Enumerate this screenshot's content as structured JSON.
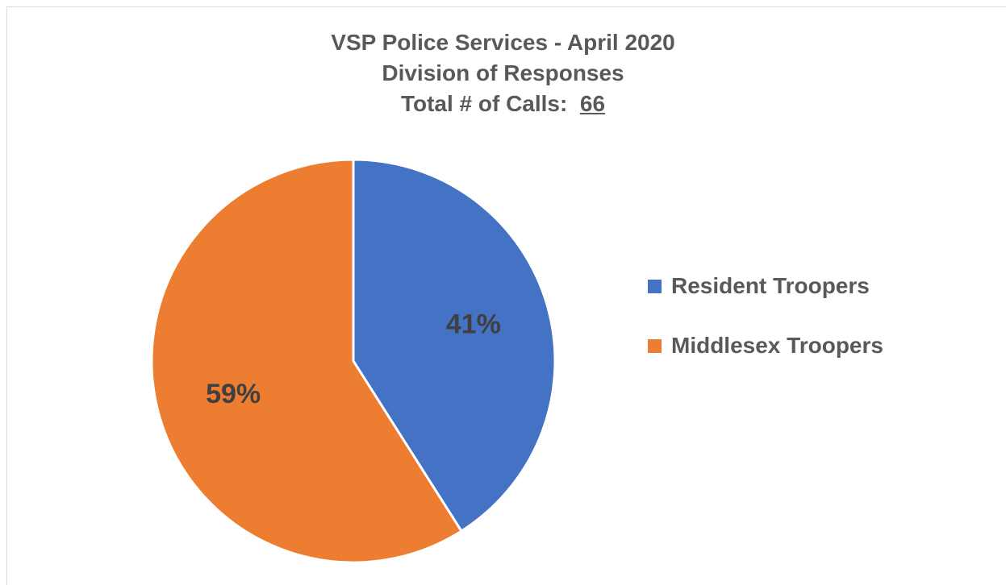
{
  "chart_data": {
    "type": "pie",
    "title_lines": [
      "VSP Police Services - April 2020",
      "Division of Responses"
    ],
    "total_label": "Total # of Calls:",
    "total_value": "66",
    "slices": [
      {
        "name": "Resident Troopers",
        "value": 41,
        "label": "41%",
        "color": "#4472C4"
      },
      {
        "name": "Middlesex Troopers",
        "value": 59,
        "label": "59%",
        "color": "#ED7D31"
      }
    ],
    "legend_position": "right"
  }
}
